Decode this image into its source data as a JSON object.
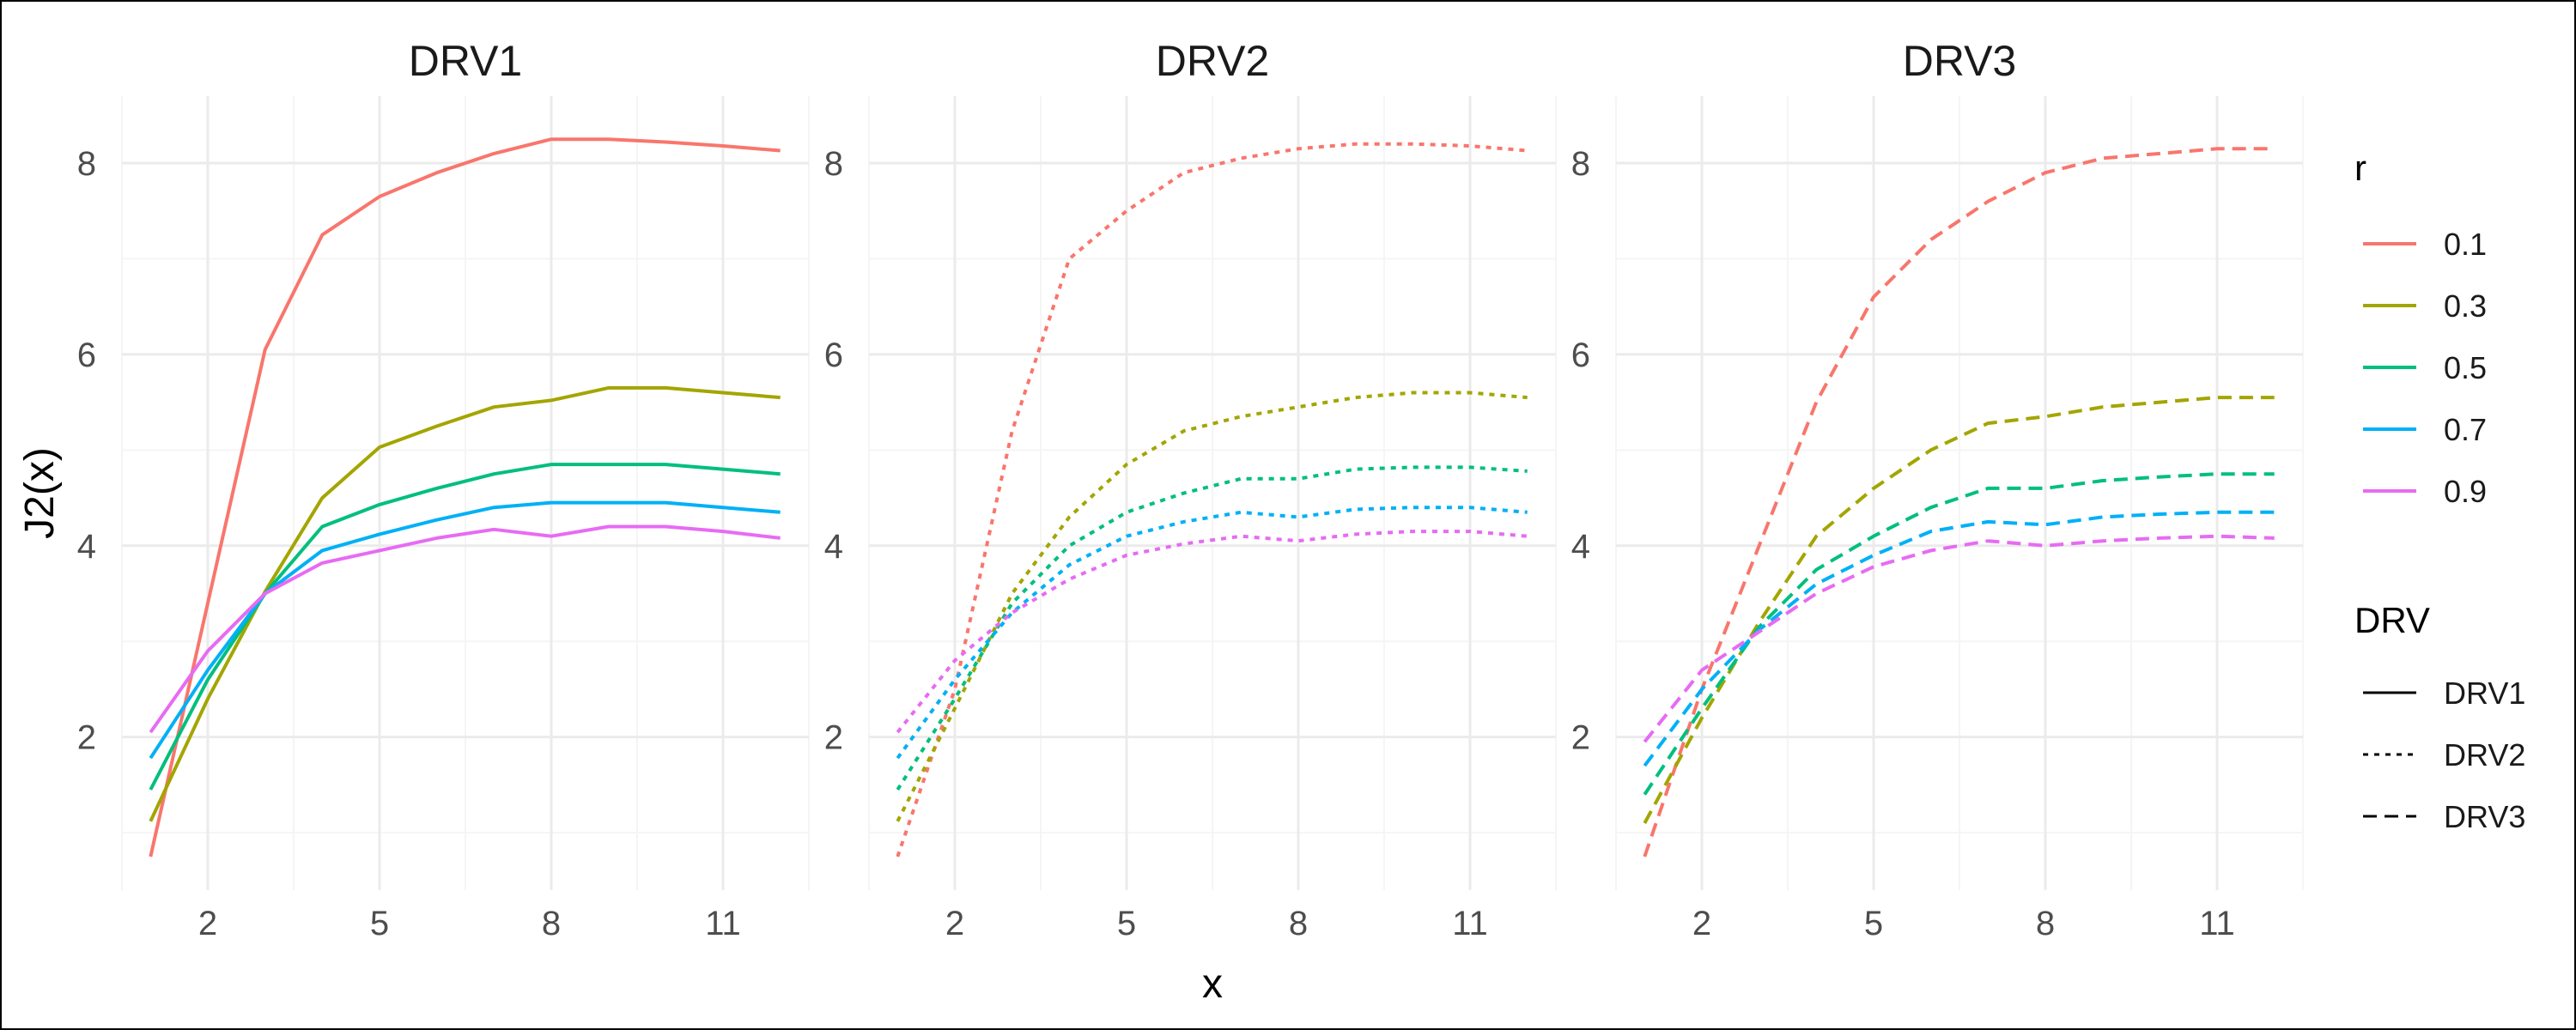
{
  "chart_data": {
    "type": "line",
    "xlabel": "x",
    "ylabel": "J2(x)",
    "xlim": [
      0.5,
      12.5
    ],
    "ylim": [
      0.4,
      8.7
    ],
    "x_ticks": [
      "2",
      "5",
      "8",
      "11"
    ],
    "y_ticks": [
      "2",
      "4",
      "6",
      "8"
    ],
    "grid": true,
    "legend_placement": "right",
    "colors": {
      "0.1": "#F8766D",
      "0.3": "#A3A500",
      "0.5": "#00BF7D",
      "0.7": "#00B0F6",
      "0.9": "#E76BF3",
      "grid_major": "#ebebeb",
      "grid_minor": "#f5f5f5"
    },
    "legend_r": {
      "title": "r",
      "items": [
        "0.1",
        "0.3",
        "0.5",
        "0.7",
        "0.9"
      ]
    },
    "legend_drv": {
      "title": "DRV",
      "items": [
        {
          "label": "DRV1",
          "linetype": "solid"
        },
        {
          "label": "DRV2",
          "linetype": "dotted"
        },
        {
          "label": "DRV3",
          "linetype": "dashed"
        }
      ]
    },
    "x": [
      1,
      2,
      3,
      4,
      5,
      6,
      7,
      8,
      9,
      10,
      11,
      12
    ],
    "panels": [
      {
        "title": "DRV1",
        "linetype": "solid",
        "series": [
          {
            "r": "0.1",
            "values": [
              0.75,
              3.4,
              6.05,
              7.25,
              7.65,
              7.9,
              8.1,
              8.25,
              8.25,
              8.22,
              8.18,
              8.13
            ]
          },
          {
            "r": "0.3",
            "values": [
              1.12,
              2.4,
              3.52,
              4.5,
              5.03,
              5.25,
              5.45,
              5.52,
              5.65,
              5.65,
              5.6,
              5.55
            ]
          },
          {
            "r": "0.5",
            "values": [
              1.45,
              2.6,
              3.5,
              4.2,
              4.43,
              4.6,
              4.75,
              4.85,
              4.85,
              4.85,
              4.8,
              4.75
            ]
          },
          {
            "r": "0.7",
            "values": [
              1.78,
              2.7,
              3.5,
              3.95,
              4.12,
              4.27,
              4.4,
              4.45,
              4.45,
              4.45,
              4.4,
              4.35
            ]
          },
          {
            "r": "0.9",
            "values": [
              2.05,
              2.9,
              3.5,
              3.82,
              3.95,
              4.08,
              4.17,
              4.1,
              4.2,
              4.2,
              4.15,
              4.08
            ]
          }
        ]
      },
      {
        "title": "DRV2",
        "linetype": "dotted",
        "series": [
          {
            "r": "0.1",
            "values": [
              0.75,
              2.5,
              5.2,
              7.0,
              7.5,
              7.9,
              8.05,
              8.15,
              8.2,
              8.2,
              8.18,
              8.13
            ]
          },
          {
            "r": "0.3",
            "values": [
              1.12,
              2.3,
              3.5,
              4.3,
              4.85,
              5.2,
              5.35,
              5.45,
              5.55,
              5.6,
              5.6,
              5.55
            ]
          },
          {
            "r": "0.5",
            "values": [
              1.45,
              2.4,
              3.4,
              4.0,
              4.35,
              4.55,
              4.7,
              4.7,
              4.8,
              4.82,
              4.82,
              4.78
            ]
          },
          {
            "r": "0.7",
            "values": [
              1.78,
              2.6,
              3.3,
              3.8,
              4.1,
              4.25,
              4.35,
              4.3,
              4.38,
              4.4,
              4.4,
              4.35
            ]
          },
          {
            "r": "0.9",
            "values": [
              2.05,
              2.8,
              3.3,
              3.65,
              3.9,
              4.02,
              4.1,
              4.05,
              4.12,
              4.15,
              4.15,
              4.1
            ]
          }
        ]
      },
      {
        "title": "DRV3",
        "linetype": "dashed",
        "series": [
          {
            "r": "0.1",
            "values": [
              0.75,
              2.5,
              4.0,
              5.5,
              6.6,
              7.2,
              7.6,
              7.9,
              8.05,
              8.1,
              8.15,
              8.15
            ]
          },
          {
            "r": "0.3",
            "values": [
              1.1,
              2.2,
              3.2,
              4.1,
              4.6,
              5.0,
              5.28,
              5.35,
              5.45,
              5.5,
              5.55,
              5.55
            ]
          },
          {
            "r": "0.5",
            "values": [
              1.4,
              2.3,
              3.15,
              3.75,
              4.1,
              4.4,
              4.6,
              4.6,
              4.68,
              4.72,
              4.75,
              4.75
            ]
          },
          {
            "r": "0.7",
            "values": [
              1.7,
              2.5,
              3.12,
              3.6,
              3.9,
              4.15,
              4.25,
              4.22,
              4.3,
              4.33,
              4.35,
              4.35
            ]
          },
          {
            "r": "0.9",
            "values": [
              1.95,
              2.7,
              3.1,
              3.5,
              3.78,
              3.95,
              4.05,
              4.0,
              4.05,
              4.08,
              4.1,
              4.08
            ]
          }
        ]
      }
    ]
  }
}
